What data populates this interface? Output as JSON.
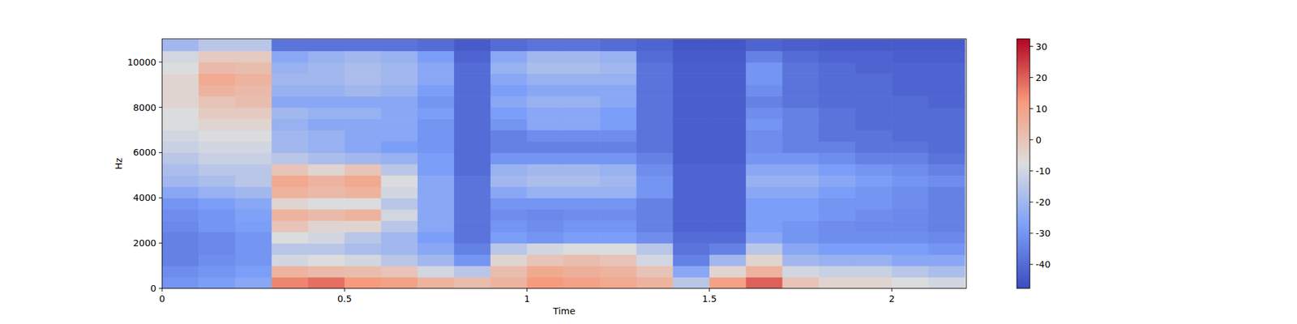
{
  "chart_data": {
    "type": "heatmap",
    "xlabel": "Time",
    "ylabel": "Hz",
    "x": [
      0.05,
      0.15,
      0.25,
      0.35,
      0.45,
      0.55,
      0.65,
      0.75,
      0.85,
      0.95,
      1.05,
      1.15,
      1.25,
      1.35,
      1.45,
      1.55,
      1.65,
      1.75,
      1.85,
      1.95,
      2.05,
      2.15
    ],
    "y": [
      250,
      750,
      1250,
      1750,
      2250,
      2750,
      3250,
      3750,
      4250,
      4750,
      5250,
      5750,
      6250,
      6750,
      7250,
      7750,
      8250,
      8750,
      9250,
      9750,
      10250,
      10750
    ],
    "values": [
      [
        -30,
        -28,
        -25,
        15,
        18,
        12,
        10,
        5,
        2,
        5,
        12,
        10,
        8,
        5,
        -15,
        10,
        20,
        0,
        -5,
        -5,
        -8,
        -10
      ],
      [
        -32,
        -30,
        -28,
        5,
        3,
        2,
        0,
        -10,
        -15,
        2,
        8,
        6,
        5,
        0,
        -25,
        -5,
        5,
        -10,
        -12,
        -12,
        -15,
        -18
      ],
      [
        -35,
        -32,
        -30,
        -10,
        -8,
        -10,
        -15,
        -20,
        -30,
        -5,
        0,
        2,
        0,
        -10,
        -35,
        -20,
        -5,
        -20,
        -22,
        -22,
        -25,
        -25
      ],
      [
        -35,
        -33,
        -30,
        -15,
        -15,
        -18,
        -20,
        -25,
        -35,
        -15,
        -10,
        -8,
        -8,
        -15,
        -38,
        -35,
        -15,
        -25,
        -28,
        -28,
        -28,
        -30
      ],
      [
        -35,
        -33,
        -30,
        -8,
        -10,
        -15,
        -20,
        -28,
        -38,
        -28,
        -30,
        -28,
        -28,
        -32,
        -40,
        -40,
        -25,
        -30,
        -32,
        -32,
        -32,
        -33
      ],
      [
        -33,
        -30,
        -28,
        0,
        -5,
        -5,
        -15,
        -25,
        -38,
        -30,
        -32,
        -30,
        -30,
        -35,
        -42,
        -42,
        -28,
        -30,
        -32,
        -33,
        -33,
        -35
      ],
      [
        -32,
        -30,
        -27,
        5,
        3,
        5,
        -10,
        -25,
        -38,
        -32,
        -33,
        -32,
        -32,
        -35,
        -42,
        -42,
        -28,
        -28,
        -30,
        -32,
        -33,
        -35
      ],
      [
        -30,
        -28,
        -25,
        -5,
        -8,
        -8,
        -15,
        -25,
        -38,
        -30,
        -30,
        -30,
        -30,
        -35,
        -42,
        -42,
        -28,
        -28,
        -30,
        -30,
        -32,
        -35
      ],
      [
        -25,
        -22,
        -20,
        5,
        3,
        5,
        -10,
        -25,
        -38,
        -25,
        -22,
        -22,
        -22,
        -30,
        -42,
        -42,
        -25,
        -25,
        -28,
        -30,
        -32,
        -35
      ],
      [
        -20,
        -18,
        -15,
        8,
        5,
        8,
        -8,
        -25,
        -38,
        -20,
        -18,
        -18,
        -20,
        -30,
        -42,
        -42,
        -22,
        -22,
        -25,
        -28,
        -30,
        -32
      ],
      [
        -18,
        -15,
        -15,
        0,
        -5,
        0,
        -15,
        -28,
        -40,
        -22,
        -20,
        -20,
        -22,
        -32,
        -42,
        -42,
        -25,
        -25,
        -28,
        -30,
        -32,
        -35
      ],
      [
        -15,
        -12,
        -12,
        -15,
        -18,
        -20,
        -22,
        -28,
        -40,
        -30,
        -30,
        -30,
        -30,
        -35,
        -43,
        -43,
        -30,
        -30,
        -32,
        -35,
        -35,
        -38
      ],
      [
        -12,
        -10,
        -10,
        -20,
        -22,
        -25,
        -28,
        -30,
        -40,
        -35,
        -35,
        -35,
        -35,
        -38,
        -43,
        -43,
        -32,
        -35,
        -35,
        -38,
        -38,
        -40
      ],
      [
        -10,
        -8,
        -8,
        -20,
        -22,
        -25,
        -25,
        -30,
        -40,
        -35,
        -32,
        -32,
        -32,
        -38,
        -43,
        -43,
        -32,
        -35,
        -38,
        -38,
        -40,
        -40
      ],
      [
        -8,
        -5,
        -5,
        -22,
        -25,
        -25,
        -25,
        -30,
        -40,
        -30,
        -25,
        -25,
        -28,
        -38,
        -43,
        -43,
        -30,
        -35,
        -38,
        -40,
        -40,
        -40
      ],
      [
        -8,
        -2,
        -2,
        -20,
        -22,
        -22,
        -25,
        -28,
        -40,
        -28,
        -25,
        -25,
        -28,
        -38,
        -43,
        -43,
        -32,
        -35,
        -38,
        -40,
        -40,
        -40
      ],
      [
        -5,
        0,
        2,
        -25,
        -25,
        -25,
        -25,
        -30,
        -40,
        -25,
        -22,
        -22,
        -25,
        -38,
        -43,
        -43,
        -35,
        -38,
        -40,
        -40,
        -40,
        -42
      ],
      [
        -5,
        5,
        3,
        -22,
        -22,
        -20,
        -22,
        -28,
        -40,
        -28,
        -25,
        -25,
        -25,
        -38,
        -43,
        -43,
        -32,
        -38,
        -40,
        -40,
        -42,
        -42
      ],
      [
        -5,
        8,
        5,
        -20,
        -20,
        -18,
        -20,
        -25,
        -40,
        -25,
        -22,
        -22,
        -22,
        -38,
        -43,
        -43,
        -30,
        -38,
        -40,
        -40,
        -42,
        -42
      ],
      [
        -8,
        3,
        2,
        -22,
        -20,
        -18,
        -20,
        -25,
        -40,
        -22,
        -18,
        -18,
        -20,
        -38,
        -43,
        -43,
        -30,
        -38,
        -40,
        -42,
        -42,
        -42
      ],
      [
        -10,
        -2,
        -2,
        -25,
        -22,
        -20,
        -22,
        -28,
        -42,
        -25,
        -20,
        -20,
        -22,
        -40,
        -44,
        -44,
        -35,
        -40,
        -42,
        -42,
        -43,
        -43
      ],
      [
        -20,
        -15,
        -15,
        -38,
        -38,
        -38,
        -38,
        -40,
        -44,
        -40,
        -38,
        -38,
        -40,
        -42,
        -45,
        -45,
        -42,
        -43,
        -44,
        -44,
        -44,
        -44
      ]
    ],
    "xlim": [
      0,
      2.204
    ],
    "ylim": [
      0,
      11025
    ],
    "xticks": [
      0,
      0.5,
      1,
      1.5,
      2
    ],
    "yticks": [
      0,
      2000,
      4000,
      6000,
      8000,
      10000
    ],
    "colorbar": {
      "range": [
        -47.7,
        32.4
      ],
      "ticks": [
        -40,
        -30,
        -20,
        -10,
        0,
        10,
        20,
        30
      ]
    }
  }
}
